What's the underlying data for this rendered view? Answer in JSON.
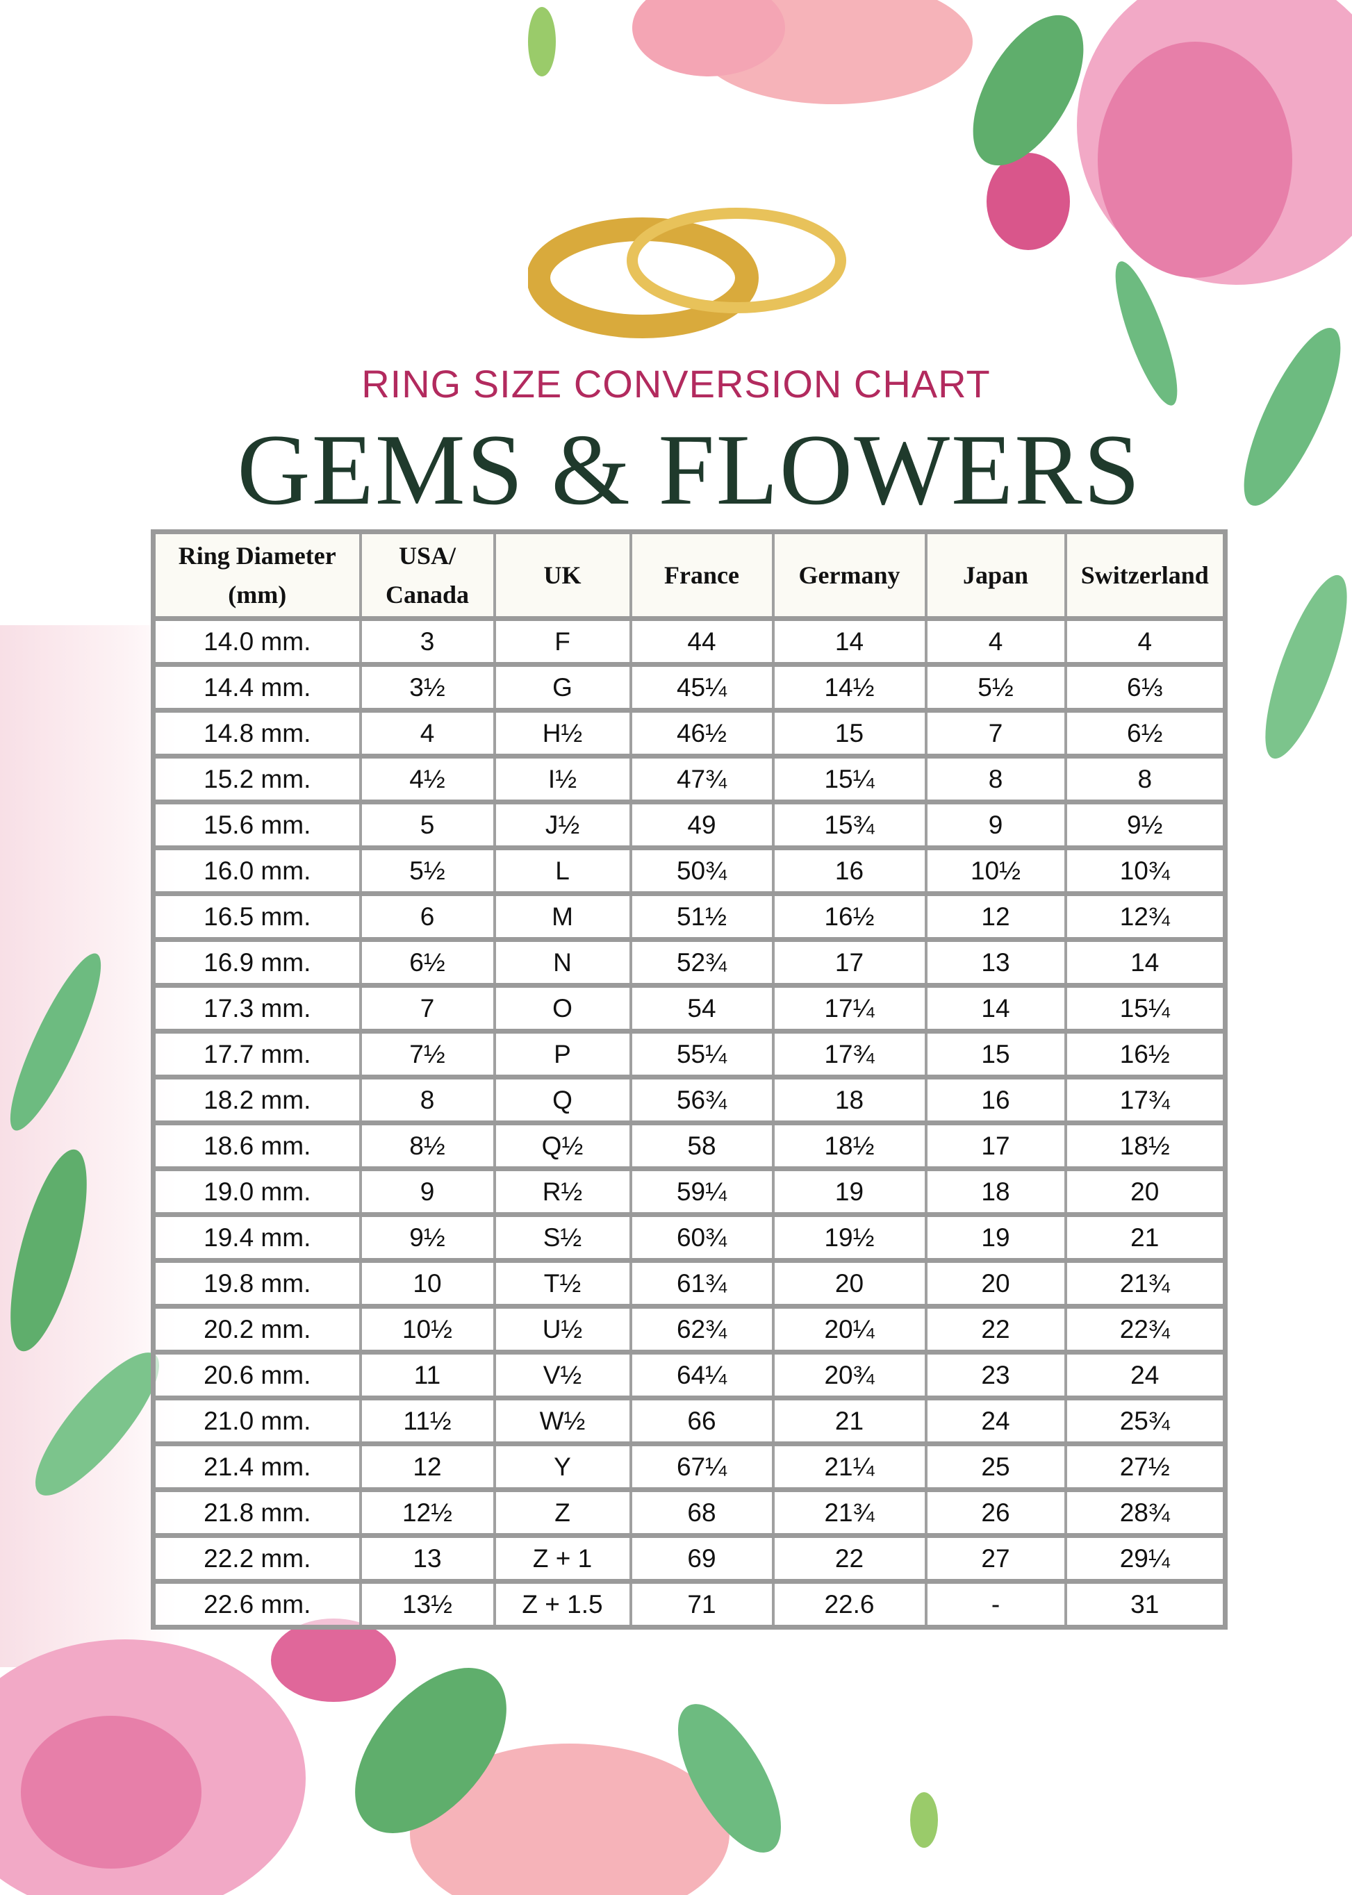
{
  "header": {
    "subtitle": "RING SIZE CONVERSION CHART",
    "title": "GEMS & FLOWERS"
  },
  "colors": {
    "subtitle": "#b22a5e",
    "title": "#1f3a2c",
    "table_border": "#9a9a9a"
  },
  "table": {
    "columns": [
      "Ring Diameter (mm)",
      "USA/ Canada",
      "UK",
      "France",
      "Germany",
      "Japan",
      "Switzerland"
    ],
    "rows": [
      [
        "14.0 mm.",
        "3",
        "F",
        "44",
        "14",
        "4",
        "4"
      ],
      [
        "14.4 mm.",
        "3½",
        "G",
        "45¼",
        "14½",
        "5½",
        "6⅓"
      ],
      [
        "14.8 mm.",
        "4",
        "H½",
        "46½",
        "15",
        "7",
        "6½"
      ],
      [
        "15.2 mm.",
        "4½",
        "I½",
        "47¾",
        "15¼",
        "8",
        "8"
      ],
      [
        "15.6 mm.",
        "5",
        "J½",
        "49",
        "15¾",
        "9",
        "9½"
      ],
      [
        "16.0 mm.",
        "5½",
        "L",
        "50¾",
        "16",
        "10½",
        "10¾"
      ],
      [
        "16.5 mm.",
        "6",
        "M",
        "51½",
        "16½",
        "12",
        "12¾"
      ],
      [
        "16.9 mm.",
        "6½",
        "N",
        "52¾",
        "17",
        "13",
        "14"
      ],
      [
        "17.3 mm.",
        "7",
        "O",
        "54",
        "17¼",
        "14",
        "15¼"
      ],
      [
        "17.7 mm.",
        "7½",
        "P",
        "55¼",
        "17¾",
        "15",
        "16½"
      ],
      [
        "18.2 mm.",
        "8",
        "Q",
        "56¾",
        "18",
        "16",
        "17¾"
      ],
      [
        "18.6 mm.",
        "8½",
        "Q½",
        "58",
        "18½",
        "17",
        "18½"
      ],
      [
        "19.0 mm.",
        "9",
        "R½",
        "59¼",
        "19",
        "18",
        "20"
      ],
      [
        "19.4 mm.",
        "9½",
        "S½",
        "60¾",
        "19½",
        "19",
        "21"
      ],
      [
        "19.8 mm.",
        "10",
        "T½",
        "61¾",
        "20",
        "20",
        "21¾"
      ],
      [
        "20.2 mm.",
        "10½",
        "U½",
        "62¾",
        "20¼",
        "22",
        "22¾"
      ],
      [
        "20.6 mm.",
        "11",
        "V½",
        "64¼",
        "20¾",
        "23",
        "24"
      ],
      [
        "21.0 mm.",
        "11½",
        "W½",
        "66",
        "21",
        "24",
        "25¾"
      ],
      [
        "21.4 mm.",
        "12",
        "Y",
        "67¼",
        "21¼",
        "25",
        "27½"
      ],
      [
        "21.8 mm.",
        "12½",
        "Z",
        "68",
        "21¾",
        "26",
        "28¾"
      ],
      [
        "22.2 mm.",
        "13",
        "Z + 1",
        "69",
        "22",
        "27",
        "29¼"
      ],
      [
        "22.6 mm.",
        "13½",
        "Z + 1.5",
        "71",
        "22.6",
        "-",
        "31"
      ]
    ]
  }
}
